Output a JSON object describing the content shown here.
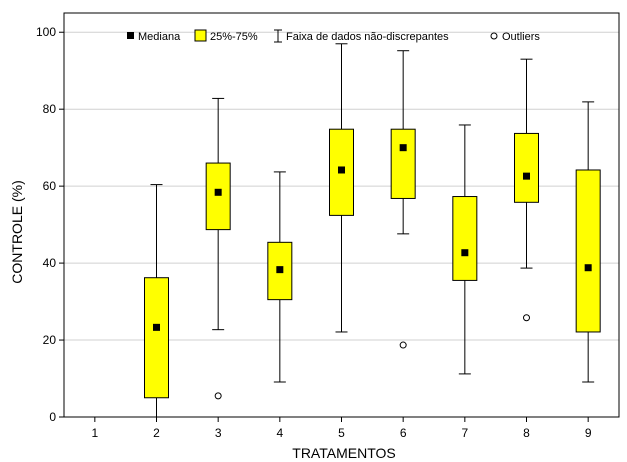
{
  "chart_data": {
    "type": "box",
    "xlabel": "TRATAMENTOS",
    "ylabel": "CONTROLE (%)",
    "ylim": [
      0,
      105
    ],
    "yticks": [
      0,
      20,
      40,
      60,
      80,
      100
    ],
    "categories": [
      "1",
      "2",
      "3",
      "4",
      "5",
      "6",
      "7",
      "8",
      "9"
    ],
    "grid": "horizontal",
    "legend": {
      "placement": "top",
      "median": "Mediana",
      "box": "25%-75%",
      "whisker": "Faixa de dados não-discrepantes",
      "outliers": "Outliers"
    },
    "colors": {
      "box_fill": "#ffff00",
      "grid": "#d0d0d0"
    },
    "boxes": [
      {
        "category": "2",
        "whisker_low": 0,
        "q1": 5,
        "median": 23.3,
        "q3": 36.2,
        "whisker_high": 60.4,
        "outliers": []
      },
      {
        "category": "3",
        "whisker_low": 22.7,
        "q1": 48.7,
        "median": 58.4,
        "q3": 66.0,
        "whisker_high": 82.8,
        "outliers": [
          5.5
        ]
      },
      {
        "category": "4",
        "whisker_low": 9.1,
        "q1": 30.5,
        "median": 38.3,
        "q3": 45.4,
        "whisker_high": 63.7,
        "outliers": []
      },
      {
        "category": "5",
        "whisker_low": 22.1,
        "q1": 52.4,
        "median": 64.2,
        "q3": 74.8,
        "whisker_high": 97.0,
        "outliers": []
      },
      {
        "category": "6",
        "whisker_low": 47.6,
        "q1": 56.8,
        "median": 70.0,
        "q3": 74.8,
        "whisker_high": 95.2,
        "outliers": [
          18.7
        ]
      },
      {
        "category": "7",
        "whisker_low": 11.2,
        "q1": 35.5,
        "median": 42.7,
        "q3": 57.3,
        "whisker_high": 75.9,
        "outliers": []
      },
      {
        "category": "8",
        "whisker_low": 38.7,
        "q1": 55.8,
        "median": 62.6,
        "q3": 73.7,
        "whisker_high": 93.0,
        "outliers": [
          25.8
        ]
      },
      {
        "category": "9",
        "whisker_low": 9.1,
        "q1": 22.1,
        "median": 38.8,
        "q3": 64.2,
        "whisker_high": 81.9,
        "outliers": []
      }
    ]
  }
}
